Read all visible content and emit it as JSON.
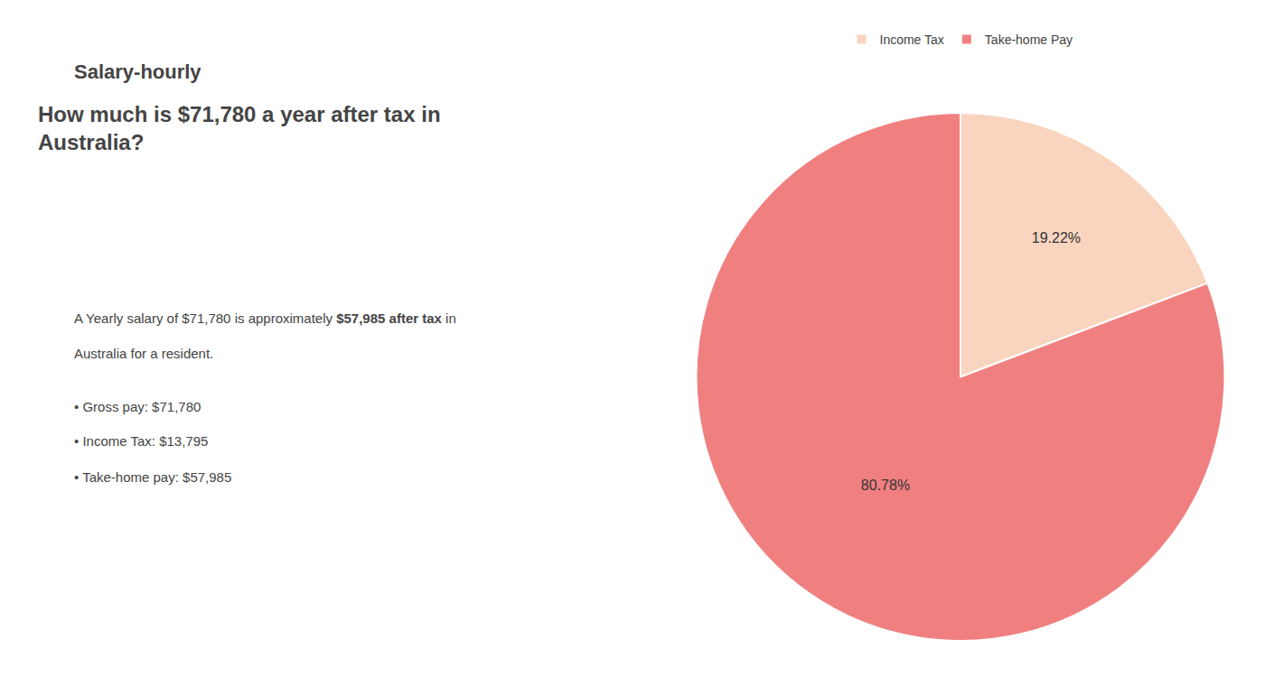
{
  "chart_data": {
    "type": "pie",
    "title": "How much is $71,780 a year after tax in\nAustralia?",
    "categories": [
      "Income Tax",
      "Take-home Pay"
    ],
    "values": [
      19.22,
      80.78
    ],
    "value_labels": [
      "19.22%",
      "80.78%"
    ],
    "colors": [
      "#f9d5c0",
      "#f08080"
    ],
    "data_labels": true,
    "legend": "top",
    "annotations": [
      "S",
      "alary-hourly",
      "A Yearly salary of $71,780 is approximately ",
      "$57,985 after tax",
      " in",
      "Australia for a resident.",
      "• Gross pay: $71,780",
      "• Income Tax: $13,795",
      "• Take-home pay: $57,985"
    ]
  }
}
